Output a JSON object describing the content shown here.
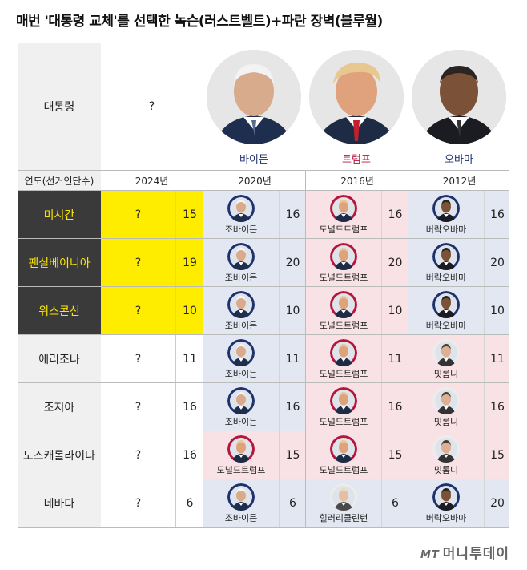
{
  "title": "매번 '대통령 교체'를 선택한 녹슨(러스트벨트)+파란 장벽(블루월)",
  "header": {
    "label": "대통령",
    "q": "?",
    "presidents": [
      "바이든",
      "트럼프",
      "오바마"
    ]
  },
  "year_row": {
    "label": "연도(선거인단수)",
    "years": [
      "2024년",
      "2020년",
      "2016년",
      "2012년"
    ]
  },
  "rows": [
    {
      "state": "미시간",
      "q": "?",
      "n2024": "15",
      "c2020": "조바이든",
      "n2020": "16",
      "c2016": "도널드트럼프",
      "n2016": "16",
      "c2012": "버락오바마",
      "n2012": "16"
    },
    {
      "state": "펜실베이니아",
      "q": "?",
      "n2024": "19",
      "c2020": "조바이든",
      "n2020": "20",
      "c2016": "도널드트럼프",
      "n2016": "20",
      "c2012": "버락오바마",
      "n2012": "20"
    },
    {
      "state": "위스콘신",
      "q": "?",
      "n2024": "10",
      "c2020": "조바이든",
      "n2020": "10",
      "c2016": "도널드트럼프",
      "n2016": "10",
      "c2012": "버락오바마",
      "n2012": "10"
    },
    {
      "state": "애리조나",
      "q": "?",
      "n2024": "11",
      "c2020": "조바이든",
      "n2020": "11",
      "c2016": "도널드트럼프",
      "n2016": "11",
      "c2012": "밋롬니",
      "n2012": "11"
    },
    {
      "state": "조지아",
      "q": "?",
      "n2024": "16",
      "c2020": "조바이든",
      "n2020": "16",
      "c2016": "도널드트럼프",
      "n2016": "16",
      "c2012": "밋롬니",
      "n2012": "16"
    },
    {
      "state": "노스캐롤라이나",
      "q": "?",
      "n2024": "16",
      "c2020": "도널드트럼프",
      "n2020": "15",
      "c2016": "도널드트럼프",
      "n2016": "15",
      "c2012": "밋롬니",
      "n2012": "15"
    },
    {
      "state": "네바다",
      "q": "?",
      "n2024": "6",
      "c2020": "조바이든",
      "n2020": "6",
      "c2016": "힐러리클린턴",
      "n2016": "6",
      "c2012": "버락오바마",
      "n2012": "20"
    }
  ],
  "logo": {
    "mt": "MT",
    "text": "머니투데이"
  },
  "colors": {
    "swing_bg": "#3a3a3a",
    "swing_text": "#ffe600",
    "highlight_2024": "#ffed00",
    "blue_cell": "#e2e7f1",
    "red_cell": "#f9e2e6"
  }
}
